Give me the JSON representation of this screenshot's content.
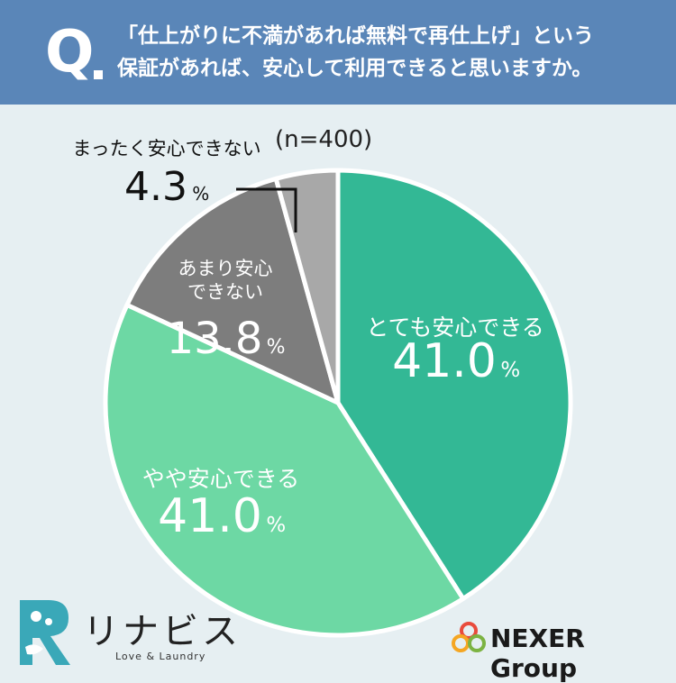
{
  "header": {
    "q_mark": "Q",
    "question_line1": "「仕上がりに不満があれば無料で再仕上げ」という",
    "question_line2": "保証があれば、安心して利用できると思いますか。"
  },
  "sample_size": "(n=400)",
  "chart_data": {
    "type": "pie",
    "title": "「仕上がりに不満があれば無料で再仕上げ」という保証があれば、安心して利用できると思いますか。",
    "n": "(n=400)",
    "unit": "%",
    "slices": [
      {
        "label_lines": [
          "とても安心できる"
        ],
        "value": 41.0,
        "value_text": "41.0",
        "color": "#33b895"
      },
      {
        "label_lines": [
          "やや安心できる"
        ],
        "value": 41.0,
        "value_text": "41.0",
        "color": "#6dd8a4"
      },
      {
        "label_lines": [
          "あまり安心",
          "できない"
        ],
        "value": 13.8,
        "value_text": "13.8",
        "color": "#7d7d7d"
      },
      {
        "label_lines": [
          "まったく安心できない"
        ],
        "value": 4.3,
        "value_text": "4.3",
        "color": "#a8a8a8"
      }
    ]
  },
  "brand": {
    "name": "リナビス",
    "tagline": "Love & Laundry"
  },
  "nexer": {
    "name": "NEXER Group"
  }
}
